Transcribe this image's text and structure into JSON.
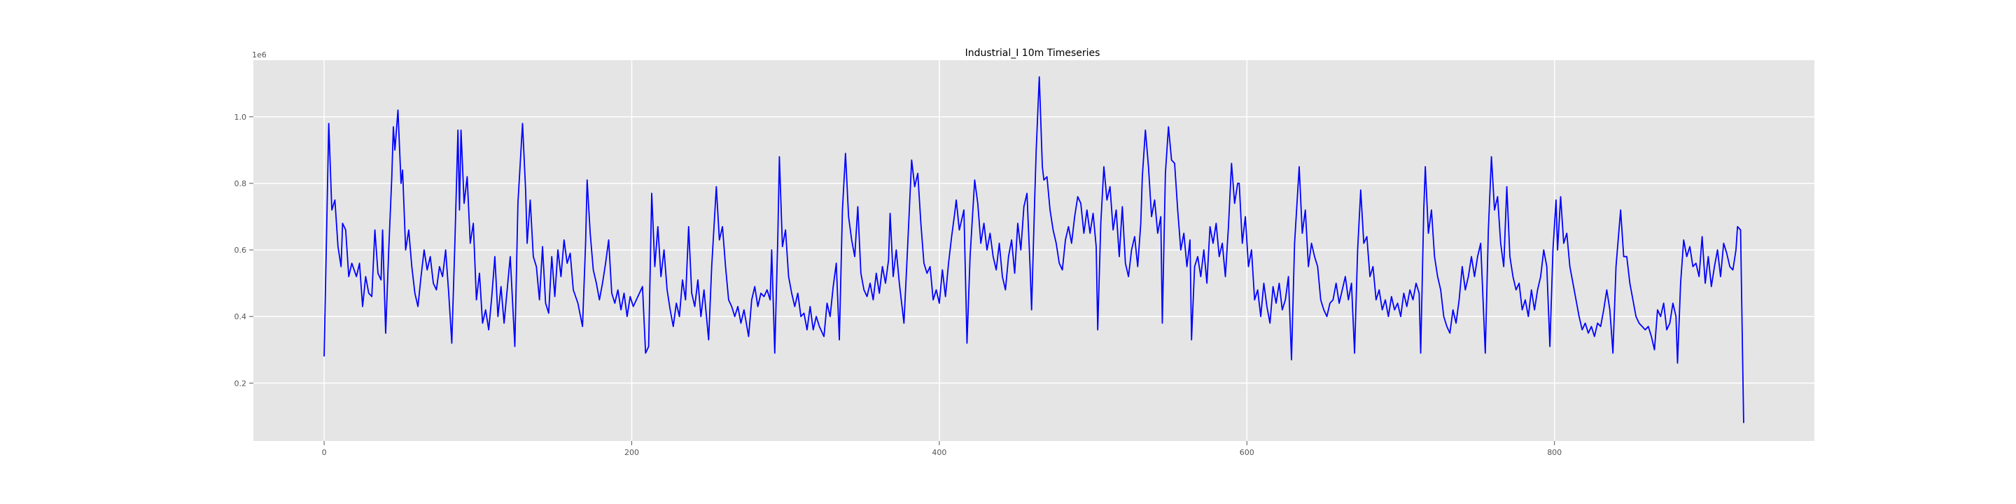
{
  "chart_data": {
    "type": "line",
    "title": "Industrial_I 10m Timeseries",
    "y_offset_label": "1e6",
    "color": "#0000ff",
    "grid": true,
    "xlim": [
      -46,
      969
    ],
    "ylim": [
      0.026,
      1.17
    ],
    "xticks": [
      0,
      200,
      400,
      600,
      800
    ],
    "yticks": [
      0.2,
      0.4,
      0.6,
      0.8,
      {
        "value": 1,
        "label": "1.0"
      }
    ],
    "x": [
      0,
      3,
      5,
      7,
      9,
      11,
      12,
      14,
      16,
      18,
      21,
      23,
      25,
      27,
      29,
      31,
      33,
      35,
      37,
      38,
      40,
      42,
      44,
      45,
      46,
      48,
      50,
      51,
      53,
      55,
      57,
      59,
      61,
      63,
      65,
      67,
      69,
      71,
      73,
      75,
      77,
      79,
      81,
      83,
      85,
      87,
      88,
      89,
      91,
      93,
      95,
      97,
      99,
      101,
      103,
      105,
      107,
      109,
      111,
      113,
      115,
      117,
      119,
      121,
      124,
      126,
      129,
      131,
      132,
      134,
      136,
      138,
      140,
      142,
      144,
      146,
      148,
      150,
      152,
      154,
      156,
      158,
      160,
      162,
      165,
      168,
      170,
      171,
      173,
      175,
      177,
      179,
      181,
      183,
      185,
      187,
      189,
      191,
      193,
      195,
      197,
      199,
      201,
      203,
      205,
      207,
      209,
      211,
      213,
      215,
      217,
      219,
      221,
      223,
      225,
      227,
      229,
      231,
      233,
      235,
      237,
      239,
      241,
      243,
      245,
      247,
      250,
      252,
      255,
      257,
      259,
      261,
      263,
      265,
      267,
      269,
      271,
      273,
      276,
      278,
      280,
      282,
      284,
      286,
      288,
      290,
      291,
      293,
      295,
      296,
      298,
      300,
      302,
      304,
      306,
      308,
      310,
      312,
      314,
      316,
      318,
      320,
      322,
      325,
      327,
      329,
      331,
      333,
      335,
      337,
      339,
      341,
      343,
      345,
      347,
      349,
      351,
      353,
      355,
      357,
      359,
      361,
      363,
      365,
      367,
      368,
      370,
      372,
      374,
      377,
      379,
      382,
      384,
      386,
      388,
      390,
      392,
      394,
      396,
      398,
      400,
      402,
      404,
      406,
      408,
      410,
      411,
      413,
      415,
      416,
      418,
      420,
      423,
      425,
      427,
      429,
      431,
      433,
      435,
      437,
      439,
      441,
      443,
      445,
      447,
      449,
      451,
      453,
      455,
      457,
      459,
      460,
      462,
      463,
      465,
      467,
      468,
      470,
      472,
      474,
      476,
      478,
      480,
      482,
      484,
      486,
      488,
      490,
      492,
      494,
      496,
      498,
      500,
      502,
      503,
      505,
      507,
      509,
      511,
      513,
      515,
      517,
      519,
      521,
      523,
      525,
      527,
      529,
      531,
      532,
      534,
      536,
      538,
      540,
      542,
      544,
      545,
      547,
      549,
      551,
      553,
      555,
      557,
      559,
      561,
      563,
      564,
      566,
      568,
      570,
      572,
      574,
      576,
      578,
      580,
      582,
      584,
      586,
      588,
      590,
      592,
      594,
      595,
      597,
      599,
      601,
      603,
      605,
      607,
      609,
      611,
      613,
      615,
      617,
      619,
      621,
      623,
      625,
      627,
      629,
      631,
      634,
      636,
      638,
      640,
      642,
      644,
      646,
      648,
      650,
      652,
      654,
      656,
      658,
      660,
      662,
      664,
      666,
      668,
      670,
      672,
      674,
      676,
      678,
      680,
      682,
      684,
      686,
      688,
      690,
      692,
      694,
      696,
      698,
      700,
      702,
      704,
      706,
      708,
      710,
      712,
      713,
      715,
      716,
      718,
      720,
      722,
      724,
      726,
      728,
      730,
      732,
      734,
      736,
      738,
      740,
      742,
      744,
      746,
      748,
      750,
      752,
      755,
      757,
      759,
      761,
      763,
      765,
      767,
      769,
      771,
      773,
      775,
      777,
      779,
      781,
      783,
      785,
      787,
      789,
      791,
      793,
      795,
      797,
      799,
      801,
      802,
      804,
      806,
      808,
      810,
      812,
      814,
      816,
      818,
      820,
      822,
      824,
      826,
      828,
      830,
      832,
      834,
      836,
      838,
      840,
      843,
      845,
      847,
      849,
      851,
      853,
      855,
      857,
      859,
      861,
      863,
      865,
      867,
      869,
      871,
      873,
      875,
      877,
      879,
      880,
      882,
      884,
      886,
      888,
      890,
      892,
      894,
      896,
      898,
      900,
      902,
      904,
      906,
      908,
      910,
      912,
      914,
      916,
      918,
      919,
      921,
      923
    ],
    "values": [
      0.28,
      0.98,
      0.72,
      0.75,
      0.61,
      0.55,
      0.68,
      0.66,
      0.52,
      0.56,
      0.52,
      0.56,
      0.43,
      0.52,
      0.47,
      0.46,
      0.66,
      0.53,
      0.51,
      0.66,
      0.35,
      0.6,
      0.82,
      0.97,
      0.9,
      1.02,
      0.8,
      0.84,
      0.6,
      0.66,
      0.55,
      0.47,
      0.43,
      0.52,
      0.6,
      0.54,
      0.58,
      0.5,
      0.48,
      0.55,
      0.52,
      0.6,
      0.47,
      0.32,
      0.62,
      0.96,
      0.72,
      0.96,
      0.74,
      0.82,
      0.62,
      0.68,
      0.45,
      0.53,
      0.38,
      0.42,
      0.36,
      0.46,
      0.58,
      0.4,
      0.49,
      0.38,
      0.48,
      0.58,
      0.31,
      0.74,
      0.98,
      0.78,
      0.62,
      0.75,
      0.58,
      0.55,
      0.45,
      0.61,
      0.44,
      0.41,
      0.58,
      0.46,
      0.6,
      0.52,
      0.63,
      0.56,
      0.59,
      0.48,
      0.44,
      0.37,
      0.62,
      0.81,
      0.65,
      0.54,
      0.5,
      0.45,
      0.5,
      0.56,
      0.63,
      0.47,
      0.44,
      0.48,
      0.42,
      0.47,
      0.4,
      0.46,
      0.43,
      0.45,
      0.47,
      0.49,
      0.29,
      0.31,
      0.77,
      0.55,
      0.67,
      0.52,
      0.6,
      0.48,
      0.42,
      0.37,
      0.44,
      0.4,
      0.51,
      0.45,
      0.67,
      0.47,
      0.43,
      0.51,
      0.4,
      0.48,
      0.33,
      0.55,
      0.79,
      0.63,
      0.67,
      0.55,
      0.45,
      0.43,
      0.4,
      0.43,
      0.38,
      0.42,
      0.34,
      0.45,
      0.49,
      0.43,
      0.47,
      0.46,
      0.48,
      0.45,
      0.6,
      0.29,
      0.64,
      0.88,
      0.61,
      0.66,
      0.52,
      0.47,
      0.43,
      0.47,
      0.4,
      0.41,
      0.36,
      0.43,
      0.36,
      0.4,
      0.37,
      0.34,
      0.44,
      0.4,
      0.49,
      0.56,
      0.33,
      0.72,
      0.89,
      0.7,
      0.63,
      0.58,
      0.73,
      0.53,
      0.48,
      0.46,
      0.5,
      0.45,
      0.53,
      0.47,
      0.55,
      0.5,
      0.57,
      0.71,
      0.52,
      0.6,
      0.5,
      0.38,
      0.57,
      0.87,
      0.79,
      0.83,
      0.68,
      0.56,
      0.53,
      0.55,
      0.45,
      0.48,
      0.44,
      0.54,
      0.46,
      0.56,
      0.64,
      0.71,
      0.75,
      0.66,
      0.7,
      0.72,
      0.32,
      0.58,
      0.81,
      0.74,
      0.62,
      0.68,
      0.6,
      0.65,
      0.58,
      0.54,
      0.62,
      0.52,
      0.48,
      0.58,
      0.63,
      0.53,
      0.68,
      0.6,
      0.73,
      0.77,
      0.55,
      0.42,
      0.75,
      0.9,
      1.12,
      0.85,
      0.81,
      0.82,
      0.72,
      0.66,
      0.62,
      0.56,
      0.54,
      0.63,
      0.67,
      0.62,
      0.7,
      0.76,
      0.74,
      0.65,
      0.72,
      0.65,
      0.71,
      0.61,
      0.36,
      0.68,
      0.85,
      0.75,
      0.79,
      0.66,
      0.72,
      0.58,
      0.73,
      0.56,
      0.52,
      0.6,
      0.64,
      0.55,
      0.68,
      0.82,
      0.96,
      0.85,
      0.7,
      0.75,
      0.65,
      0.7,
      0.38,
      0.83,
      0.97,
      0.87,
      0.86,
      0.72,
      0.6,
      0.65,
      0.55,
      0.63,
      0.33,
      0.55,
      0.58,
      0.52,
      0.6,
      0.5,
      0.67,
      0.62,
      0.68,
      0.58,
      0.62,
      0.52,
      0.67,
      0.86,
      0.74,
      0.8,
      0.8,
      0.62,
      0.7,
      0.55,
      0.6,
      0.45,
      0.48,
      0.4,
      0.5,
      0.43,
      0.38,
      0.49,
      0.44,
      0.5,
      0.42,
      0.45,
      0.52,
      0.27,
      0.62,
      0.85,
      0.65,
      0.72,
      0.55,
      0.62,
      0.58,
      0.55,
      0.45,
      0.42,
      0.4,
      0.44,
      0.45,
      0.5,
      0.44,
      0.48,
      0.52,
      0.45,
      0.5,
      0.29,
      0.6,
      0.78,
      0.62,
      0.64,
      0.52,
      0.55,
      0.45,
      0.48,
      0.42,
      0.45,
      0.4,
      0.46,
      0.42,
      0.44,
      0.4,
      0.47,
      0.43,
      0.48,
      0.45,
      0.5,
      0.47,
      0.29,
      0.72,
      0.85,
      0.65,
      0.72,
      0.58,
      0.52,
      0.48,
      0.4,
      0.37,
      0.35,
      0.42,
      0.38,
      0.45,
      0.55,
      0.48,
      0.52,
      0.58,
      0.52,
      0.58,
      0.62,
      0.29,
      0.66,
      0.88,
      0.72,
      0.76,
      0.62,
      0.55,
      0.79,
      0.58,
      0.52,
      0.48,
      0.5,
      0.42,
      0.45,
      0.4,
      0.48,
      0.42,
      0.48,
      0.52,
      0.6,
      0.55,
      0.31,
      0.6,
      0.75,
      0.6,
      0.76,
      0.62,
      0.65,
      0.55,
      0.5,
      0.45,
      0.4,
      0.36,
      0.38,
      0.35,
      0.37,
      0.34,
      0.38,
      0.37,
      0.42,
      0.48,
      0.42,
      0.29,
      0.55,
      0.72,
      0.58,
      0.58,
      0.5,
      0.45,
      0.4,
      0.38,
      0.37,
      0.36,
      0.37,
      0.34,
      0.3,
      0.42,
      0.4,
      0.44,
      0.36,
      0.38,
      0.44,
      0.4,
      0.26,
      0.5,
      0.63,
      0.58,
      0.61,
      0.55,
      0.56,
      0.52,
      0.64,
      0.5,
      0.58,
      0.49,
      0.55,
      0.6,
      0.52,
      0.62,
      0.59,
      0.55,
      0.54,
      0.6,
      0.67,
      0.66,
      0.08
    ]
  }
}
